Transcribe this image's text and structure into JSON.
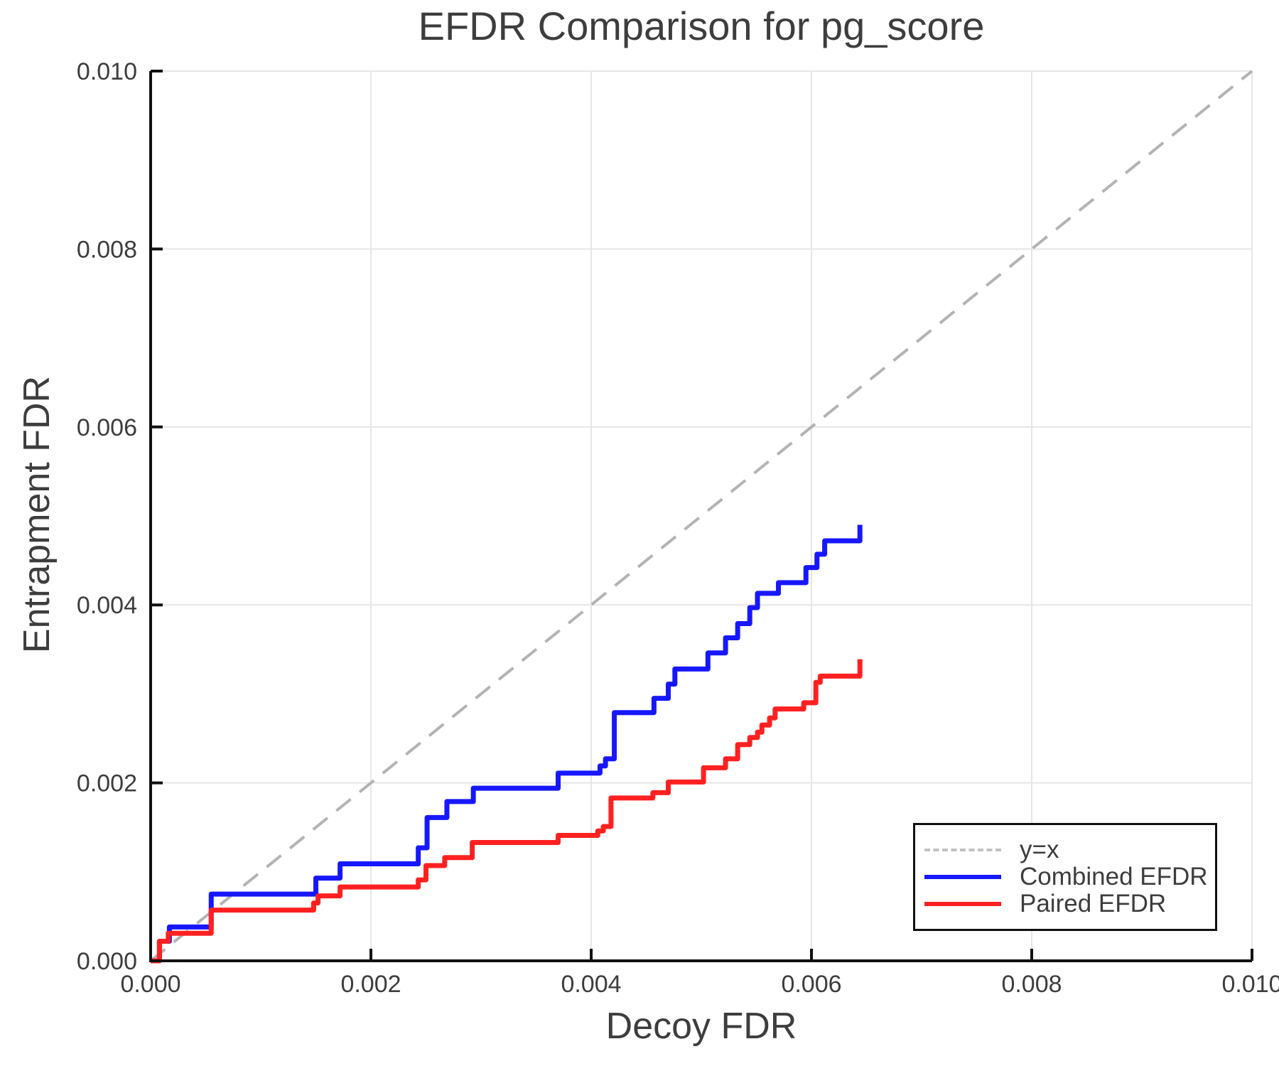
{
  "title": "EFDR Comparison for pg_score",
  "axes": {
    "x_label": "Decoy FDR",
    "y_label": "Entrapment FDR",
    "tick_values": [
      0,
      0.002,
      0.004,
      0.006,
      0.008,
      0.01
    ],
    "x_tick_labels": [
      "0.000",
      "0.002",
      "0.004",
      "0.006",
      "0.008",
      "0.010"
    ],
    "y_tick_labels": [
      "0.000",
      "0.002",
      "0.004",
      "0.006",
      "0.008",
      "0.010"
    ]
  },
  "colors": {
    "combined_blue": "#1717ff",
    "paired_red": "#ff2121",
    "identity_dash": "#b3b3b3",
    "legend_dash_sample": "#c2c2c2",
    "grid": "#e6e6e6",
    "axis": "#111111",
    "text": "#3d3d3d"
  },
  "legend": {
    "items": [
      {
        "label": "y=x",
        "color": "#c2c2c2",
        "dashed": true
      },
      {
        "label": "Combined EFDR",
        "color": "#1717ff",
        "dashed": false
      },
      {
        "label": "Paired EFDR",
        "color": "#ff2121",
        "dashed": false
      }
    ]
  },
  "chart_data": {
    "type": "line",
    "title": "EFDR Comparison for pg_score",
    "xlabel": "Decoy FDR",
    "ylabel": "Entrapment FDR",
    "xlim": [
      0,
      0.01
    ],
    "ylim": [
      0,
      0.01
    ],
    "grid": true,
    "legend_position": "lower right",
    "series": [
      {
        "name": "y=x",
        "style": "dashed",
        "step": false,
        "color": "#b3b3b3",
        "points": [
          [
            0,
            0
          ],
          [
            0.01,
            0.01
          ]
        ]
      },
      {
        "name": "Combined EFDR",
        "style": "solid",
        "step": true,
        "color": "#1717ff",
        "points": [
          [
            0,
            0
          ],
          [
            8e-05,
            0.00022
          ],
          [
            0.00017,
            0.00038
          ],
          [
            0.00055,
            0.00075
          ],
          [
            0.0015,
            0.00093
          ],
          [
            0.00172,
            0.00109
          ],
          [
            0.00243,
            0.00127
          ],
          [
            0.00251,
            0.00161
          ],
          [
            0.00269,
            0.00179
          ],
          [
            0.00293,
            0.00194
          ],
          [
            0.0037,
            0.00211
          ],
          [
            0.00408,
            0.00219
          ],
          [
            0.00413,
            0.00227
          ],
          [
            0.00421,
            0.00279
          ],
          [
            0.00457,
            0.00295
          ],
          [
            0.0047,
            0.00311
          ],
          [
            0.00476,
            0.00328
          ],
          [
            0.00506,
            0.00346
          ],
          [
            0.00522,
            0.00363
          ],
          [
            0.00533,
            0.00379
          ],
          [
            0.00544,
            0.00397
          ],
          [
            0.00551,
            0.00413
          ],
          [
            0.0057,
            0.00425
          ],
          [
            0.00595,
            0.00442
          ],
          [
            0.00605,
            0.00457
          ],
          [
            0.00612,
            0.00472
          ],
          [
            0.00644,
            0.0049
          ]
        ]
      },
      {
        "name": "Paired EFDR",
        "style": "solid",
        "step": true,
        "color": "#ff2121",
        "points": [
          [
            0,
            0
          ],
          [
            8e-05,
            0.00022
          ],
          [
            0.00016,
            0.00031
          ],
          [
            0.00055,
            0.00057
          ],
          [
            0.00148,
            0.00065
          ],
          [
            0.00152,
            0.00073
          ],
          [
            0.00172,
            0.00083
          ],
          [
            0.00243,
            0.00091
          ],
          [
            0.0025,
            0.00107
          ],
          [
            0.00267,
            0.00116
          ],
          [
            0.00292,
            0.00133
          ],
          [
            0.0037,
            0.00141
          ],
          [
            0.00406,
            0.00146
          ],
          [
            0.00411,
            0.00151
          ],
          [
            0.00418,
            0.00183
          ],
          [
            0.00456,
            0.00189
          ],
          [
            0.0047,
            0.00201
          ],
          [
            0.00502,
            0.00217
          ],
          [
            0.00522,
            0.00227
          ],
          [
            0.00533,
            0.00243
          ],
          [
            0.00544,
            0.00251
          ],
          [
            0.00551,
            0.00257
          ],
          [
            0.00555,
            0.00265
          ],
          [
            0.00562,
            0.00273
          ],
          [
            0.00567,
            0.00283
          ],
          [
            0.00593,
            0.0029
          ],
          [
            0.00604,
            0.00313
          ],
          [
            0.00608,
            0.0032
          ],
          [
            0.00644,
            0.00339
          ]
        ]
      }
    ]
  }
}
